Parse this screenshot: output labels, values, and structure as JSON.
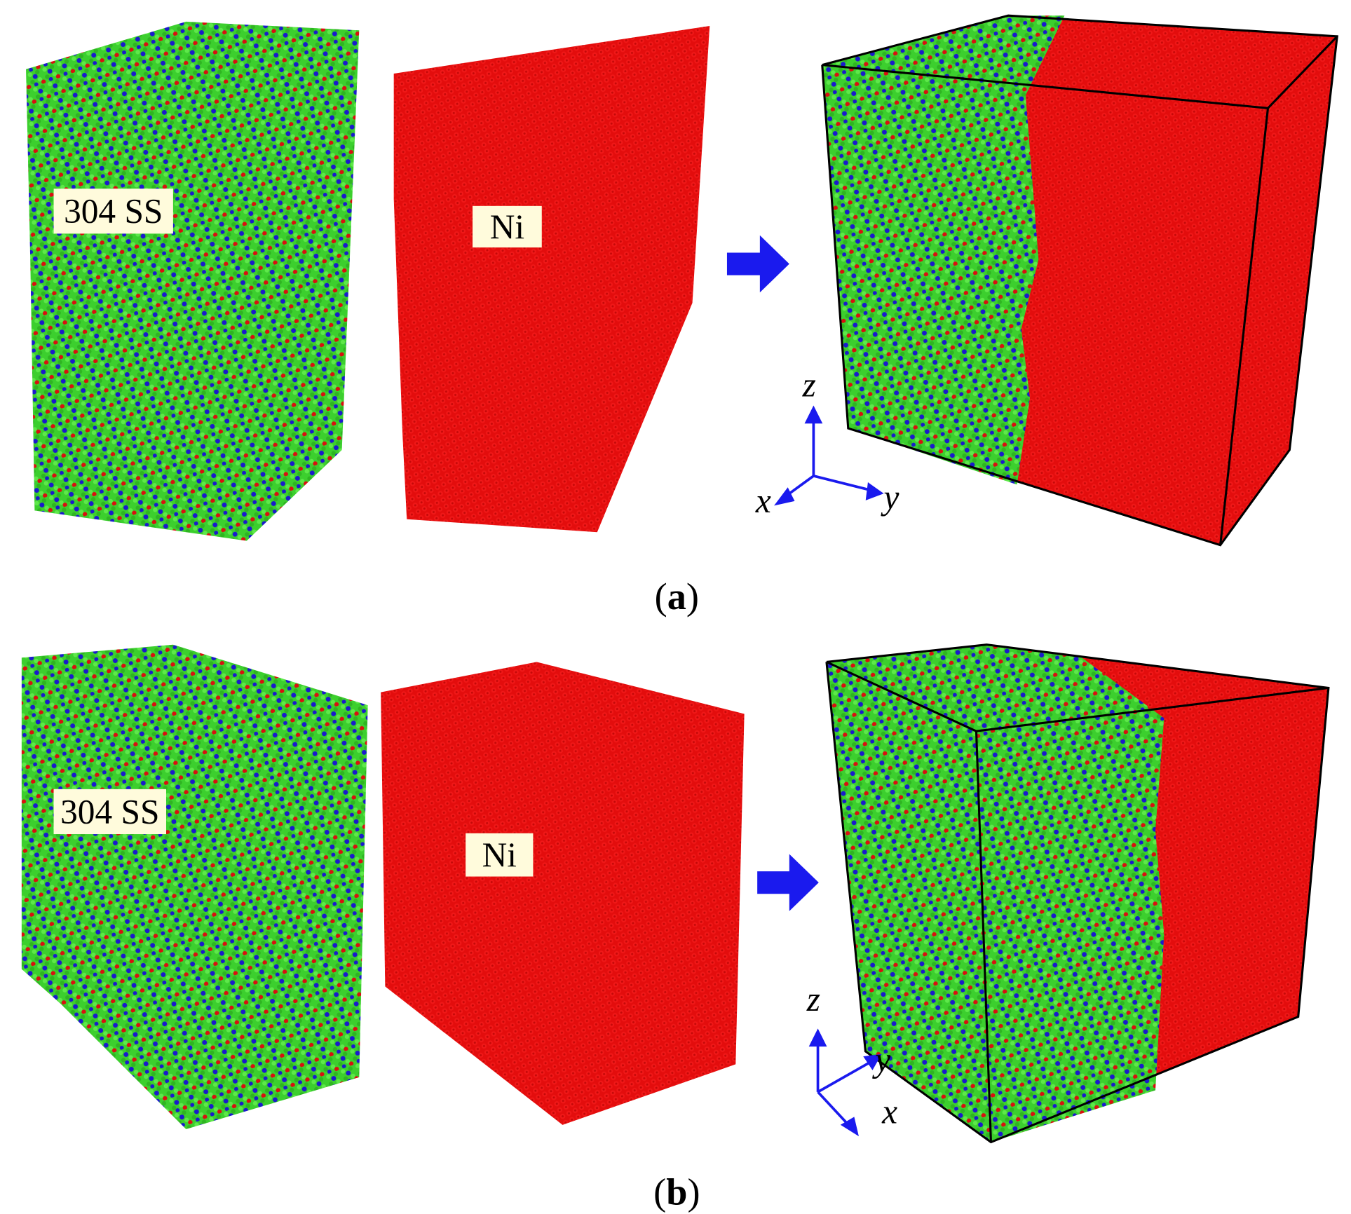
{
  "panels": [
    {
      "caption": {
        "open": "(",
        "letter": "a",
        "close": ")"
      },
      "left_label": "304 SS",
      "middle_label": "Ni",
      "axes": {
        "z": "z",
        "x": "x",
        "y": "y"
      }
    },
    {
      "caption": {
        "open": "(",
        "letter": "b",
        "close": ")"
      },
      "left_label": "304 SS",
      "middle_label": "Ni",
      "axes": {
        "z": "z",
        "x": "x",
        "y": "y"
      }
    }
  ]
}
